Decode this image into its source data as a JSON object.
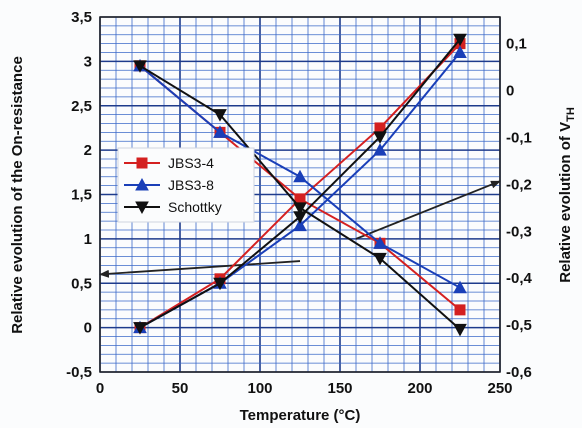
{
  "chart_data": {
    "type": "line",
    "xlabel": "Temperature (°C)",
    "ylabel_left": "Relative evolution of the On-resistance",
    "ylabel_right_main": "Relative evolution of V",
    "ylabel_right_sub": "TH",
    "xlim": [
      0,
      250
    ],
    "ylim_left": [
      -0.5,
      3.5
    ],
    "ylim_right": [
      -0.6,
      0.1
    ],
    "x_ticks": [
      "0",
      "50",
      "100",
      "150",
      "200",
      "250"
    ],
    "y_left_ticks": [
      "-0,5",
      "0",
      "0,5",
      "1",
      "1,5",
      "2",
      "2,5",
      "3",
      "3,5"
    ],
    "y_right_ticks": [
      "0,1",
      "0",
      "-0,1",
      "-0,2",
      "-0,3",
      "-0,4",
      "-0,5",
      "-0,6"
    ],
    "grid": true,
    "legend_position": "left-middle",
    "x": [
      25,
      75,
      125,
      175,
      225
    ],
    "series": [
      {
        "name": "JBS3-4",
        "color": "#d42020",
        "marker": "square",
        "on_resistance": [
          0,
          0.55,
          1.45,
          2.25,
          3.2
        ],
        "vth_left_scale": [
          2.95,
          2.2,
          1.45,
          0.95,
          0.2
        ]
      },
      {
        "name": "JBS3-8",
        "color": "#1a3fb8",
        "marker": "triangle-up",
        "on_resistance": [
          0,
          0.5,
          1.15,
          2.0,
          3.1
        ],
        "vth_left_scale": [
          2.95,
          2.2,
          1.7,
          0.95,
          0.45
        ]
      },
      {
        "name": "Schottky",
        "color": "#111111",
        "marker": "triangle-down",
        "on_resistance": [
          0,
          0.5,
          1.25,
          2.15,
          3.25
        ],
        "vth_left_scale": [
          2.95,
          2.4,
          1.35,
          0.78,
          -0.02
        ]
      }
    ],
    "annotations": [
      {
        "type": "arrow",
        "from": [
          125,
          0.75
        ],
        "to": [
          0,
          0.6
        ]
      },
      {
        "type": "arrow",
        "from": [
          160,
          1.0
        ],
        "to": [
          250,
          1.65
        ]
      }
    ]
  }
}
